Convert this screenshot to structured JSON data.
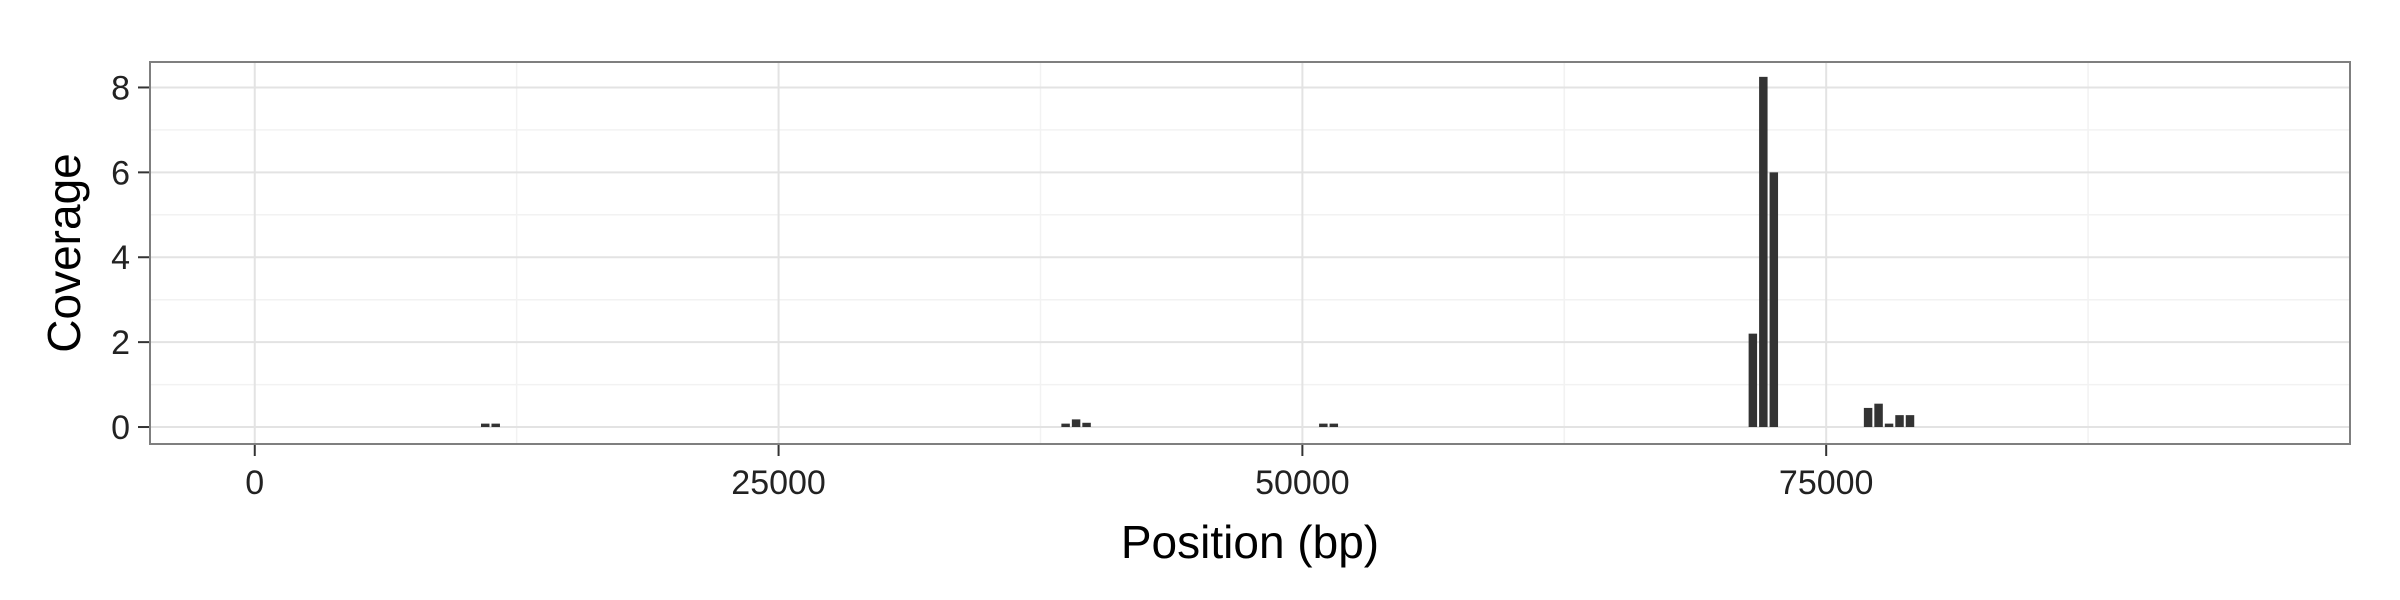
{
  "chart_data": {
    "type": "bar",
    "title": "",
    "xlabel": "Position (bp)",
    "ylabel": "Coverage",
    "xlim": [
      -5000,
      100000
    ],
    "ylim": [
      -0.4,
      8.6
    ],
    "bin_width": 500,
    "x_ticks": [
      0,
      25000,
      50000,
      75000
    ],
    "x_tick_labels": [
      "0",
      "25000",
      "50000",
      "75000"
    ],
    "y_ticks": [
      0,
      2,
      4,
      6,
      8
    ],
    "y_tick_labels": [
      "0",
      "2",
      "4",
      "6",
      "8"
    ],
    "grid": true,
    "legend": "none",
    "bar_color": "#333333",
    "series": [
      {
        "x": [
          11000,
          11500,
          38700,
          39200,
          39700,
          51000,
          51500,
          71500,
          72000,
          72500,
          77000,
          77500,
          78000,
          78500,
          79000
        ],
        "values": [
          0.08,
          0.08,
          0.08,
          0.18,
          0.1,
          0.08,
          0.08,
          2.2,
          8.25,
          6.0,
          0.45,
          0.55,
          0.08,
          0.28,
          0.28
        ]
      }
    ]
  }
}
